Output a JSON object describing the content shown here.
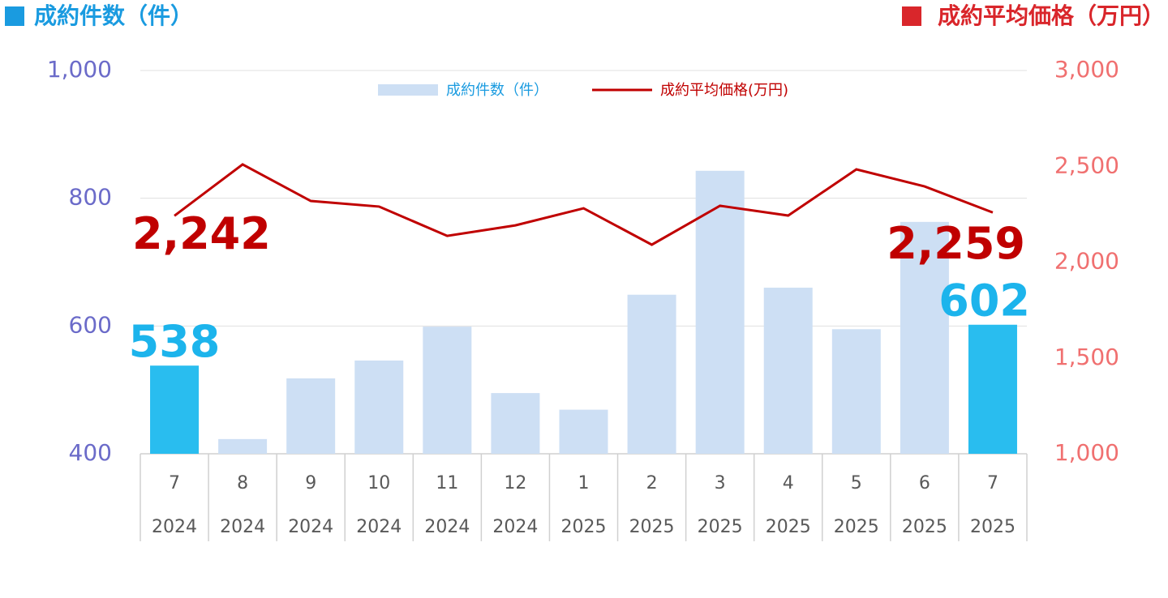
{
  "chart_data": {
    "type": "bar-line",
    "y_title": "成約件数（件）",
    "y2_title": "成約平均価格（万円）",
    "categories": [
      "7",
      "8",
      "9",
      "10",
      "11",
      "12",
      "1",
      "2",
      "3",
      "4",
      "5",
      "6",
      "7"
    ],
    "years": [
      "2024",
      "2024",
      "2024",
      "2024",
      "2024",
      "2024",
      "2025",
      "2025",
      "2025",
      "2025",
      "2025",
      "2025",
      "2025"
    ],
    "series": [
      {
        "name": "成約件数（件）",
        "type": "bar",
        "color": "#cddff4",
        "colors": [
          "#29bdef",
          "#cddff4",
          "#cddff4",
          "#cddff4",
          "#cddff4",
          "#cddff4",
          "#cddff4",
          "#cddff4",
          "#cddff4",
          "#cddff4",
          "#cddff4",
          "#cddff4",
          "#29bdef"
        ],
        "values": [
          538,
          423,
          518,
          546,
          599,
          495,
          469,
          649,
          843,
          660,
          595,
          763,
          602
        ],
        "value_labels": [
          "538",
          null,
          null,
          null,
          null,
          null,
          null,
          null,
          null,
          null,
          null,
          null,
          "602"
        ]
      },
      {
        "name": "成約平均価格(万円)",
        "type": "line",
        "axis": "y2",
        "color": "#c00000",
        "values": [
          2242,
          2510,
          2319,
          2290,
          2137,
          2192,
          2281,
          2091,
          2294,
          2243,
          2484,
          2395,
          2259
        ],
        "value_labels": [
          "2,242",
          null,
          null,
          null,
          null,
          null,
          null,
          null,
          null,
          null,
          null,
          null,
          "2,259"
        ]
      }
    ],
    "ylim": [
      400,
      1000
    ],
    "yticks": [
      400,
      600,
      800,
      {
        "value": 1000,
        "label": "1,000"
      }
    ],
    "y2lim": [
      1000,
      3000
    ],
    "y2ticks": [
      {
        "value": 1000,
        "label": "1,000"
      },
      {
        "value": 1500,
        "label": "1,500"
      },
      {
        "value": 2000,
        "label": "2,000"
      },
      {
        "value": 2500,
        "label": "2,500"
      },
      {
        "value": 3000,
        "label": "3,000"
      }
    ],
    "grid": true,
    "legend": "top"
  }
}
